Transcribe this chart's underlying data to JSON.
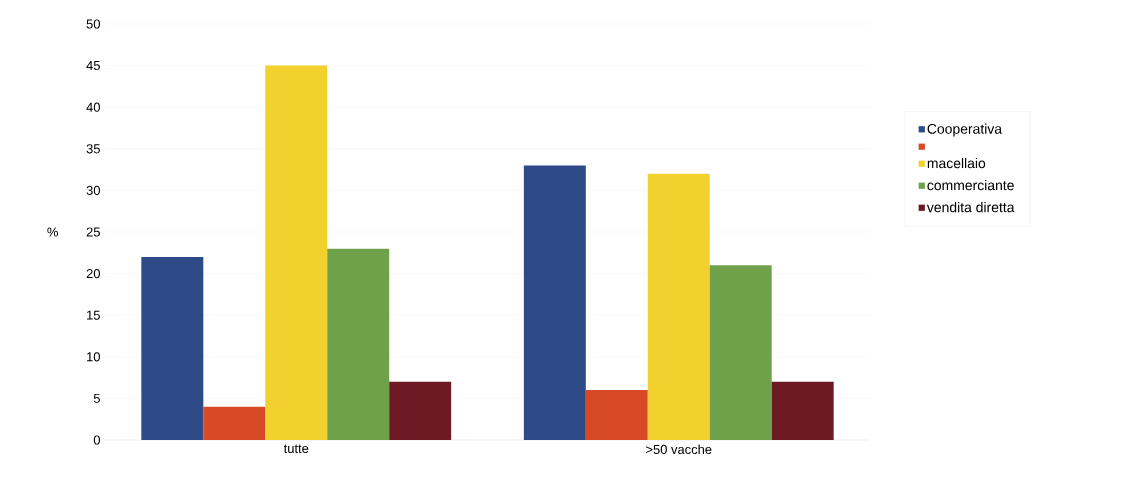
{
  "chart_data": {
    "type": "bar",
    "ylabel": "%",
    "categories": [
      "tutte",
      ">50 vacche"
    ],
    "series": [
      {
        "name": "Cooperativa",
        "color": "#2e4a87",
        "values": [
          22,
          33
        ]
      },
      {
        "color": "#d84a25",
        "values": [
          4,
          6
        ]
      },
      {
        "name": "macellaio",
        "color": "#f2d02e",
        "values": [
          45,
          32
        ]
      },
      {
        "name": "commerciante",
        "color": "#6fa14a",
        "values": [
          23,
          21
        ]
      },
      {
        "name": "vendita diretta",
        "color": "#6e1a24",
        "values": [
          7,
          7
        ]
      }
    ],
    "ylim": [
      0,
      50
    ],
    "yticks": [
      0,
      5,
      10,
      15,
      20,
      25,
      30,
      35,
      40,
      45,
      50
    ],
    "grid": "y",
    "legend": "right"
  }
}
